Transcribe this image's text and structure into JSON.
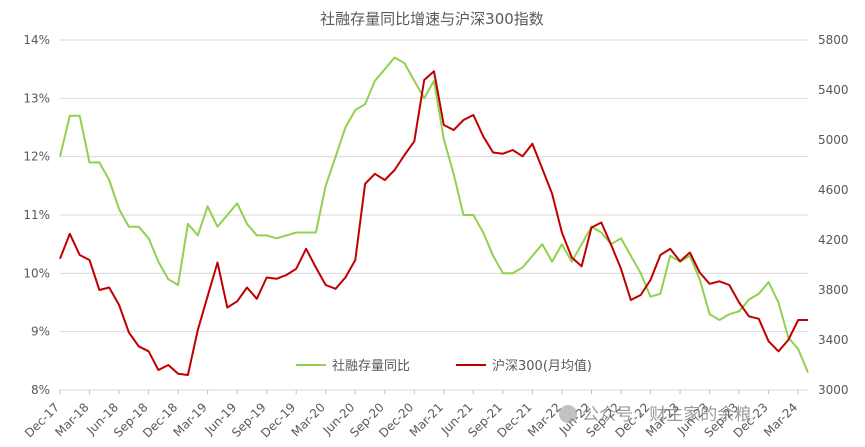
{
  "chart_data": {
    "type": "line",
    "title": "社融存量同比增速与沪深300指数",
    "x": [
      "2017-12",
      "2018-01",
      "2018-02",
      "2018-03",
      "2018-04",
      "2018-05",
      "2018-06",
      "2018-07",
      "2018-08",
      "2018-09",
      "2018-10",
      "2018-11",
      "2018-12",
      "2019-01",
      "2019-02",
      "2019-03",
      "2019-04",
      "2019-05",
      "2019-06",
      "2019-07",
      "2019-08",
      "2019-09",
      "2019-10",
      "2019-11",
      "2019-12",
      "2020-01",
      "2020-02",
      "2020-03",
      "2020-04",
      "2020-05",
      "2020-06",
      "2020-07",
      "2020-08",
      "2020-09",
      "2020-10",
      "2020-11",
      "2020-12",
      "2021-01",
      "2021-02",
      "2021-03",
      "2021-04",
      "2021-05",
      "2021-06",
      "2021-07",
      "2021-08",
      "2021-09",
      "2021-10",
      "2021-11",
      "2021-12",
      "2022-01",
      "2022-02",
      "2022-03",
      "2022-04",
      "2022-05",
      "2022-06",
      "2022-07",
      "2022-08",
      "2022-09",
      "2022-10",
      "2022-11",
      "2022-12",
      "2023-01",
      "2023-02",
      "2023-03",
      "2023-04",
      "2023-05",
      "2023-06",
      "2023-07",
      "2023-08",
      "2023-09",
      "2023-10",
      "2023-11",
      "2023-12",
      "2024-01",
      "2024-02",
      "2024-03",
      "2024-04"
    ],
    "x_tick_labels": [
      "Dec-17",
      "Mar-18",
      "Jun-18",
      "Sep-18",
      "Dec-18",
      "Mar-19",
      "Jun-19",
      "Sep-19",
      "Dec-19",
      "Mar-20",
      "Jun-20",
      "Sep-20",
      "Dec-20",
      "Mar-21",
      "Jun-21",
      "Sep-21",
      "Dec-21",
      "Mar-22",
      "Jun-22",
      "Sep-22",
      "Dec-22",
      "Mar-23",
      "Jun-23",
      "Sep-23",
      "Dec-23",
      "Mar-24"
    ],
    "series": [
      {
        "name": "社融存量同比",
        "axis": "left",
        "color": "#92d050",
        "values": [
          12.0,
          12.7,
          12.7,
          11.9,
          11.9,
          11.6,
          11.1,
          10.8,
          10.8,
          10.6,
          10.2,
          9.9,
          9.8,
          10.85,
          10.65,
          11.15,
          10.8,
          11.0,
          11.2,
          10.85,
          10.65,
          10.65,
          10.6,
          10.65,
          10.7,
          10.7,
          10.7,
          11.5,
          12.0,
          12.5,
          12.8,
          12.9,
          13.3,
          13.5,
          13.7,
          13.6,
          13.3,
          13.0,
          13.3,
          12.3,
          11.7,
          11.0,
          11.0,
          10.7,
          10.3,
          10.0,
          10.0,
          10.1,
          10.3,
          10.5,
          10.2,
          10.5,
          10.2,
          10.5,
          10.8,
          10.7,
          10.5,
          10.6,
          10.3,
          10.0,
          9.6,
          9.65,
          10.3,
          10.2,
          10.3,
          9.9,
          9.3,
          9.2,
          9.3,
          9.35,
          9.55,
          9.65,
          9.85,
          9.5,
          8.9,
          8.7,
          8.3
        ]
      },
      {
        "name": "沪深300(月均值)",
        "axis": "right",
        "color": "#c00000",
        "values": [
          4050,
          4250,
          4080,
          4040,
          3800,
          3820,
          3680,
          3460,
          3350,
          3310,
          3160,
          3200,
          3130,
          3120,
          3480,
          3750,
          4020,
          3660,
          3710,
          3820,
          3730,
          3900,
          3890,
          3920,
          3970,
          4130,
          3980,
          3840,
          3810,
          3900,
          4040,
          4650,
          4730,
          4680,
          4760,
          4880,
          4990,
          5480,
          5550,
          5120,
          5080,
          5160,
          5200,
          5030,
          4900,
          4890,
          4920,
          4870,
          4970,
          4770,
          4570,
          4260,
          4060,
          3990,
          4300,
          4340,
          4160,
          3970,
          3720,
          3760,
          3880,
          4080,
          4130,
          4030,
          4100,
          3940,
          3850,
          3870,
          3840,
          3700,
          3590,
          3570,
          3390,
          3310,
          3400,
          3560,
          3560
        ]
      }
    ],
    "ylim": [
      8,
      14
    ],
    "y_ticks": [
      "8%",
      "9%",
      "10%",
      "11%",
      "12%",
      "13%",
      "14%"
    ],
    "y2lim": [
      3000,
      5800
    ],
    "y2_ticks": [
      "3000",
      "3400",
      "3800",
      "4200",
      "4600",
      "5000",
      "5400",
      "5800"
    ],
    "grid": true,
    "legend_position": "bottom-center-inside"
  },
  "watermark": {
    "text": "公众号 · 财主家的余粮"
  },
  "colors": {
    "grid": "#d9d9d9",
    "text": "#595959"
  }
}
